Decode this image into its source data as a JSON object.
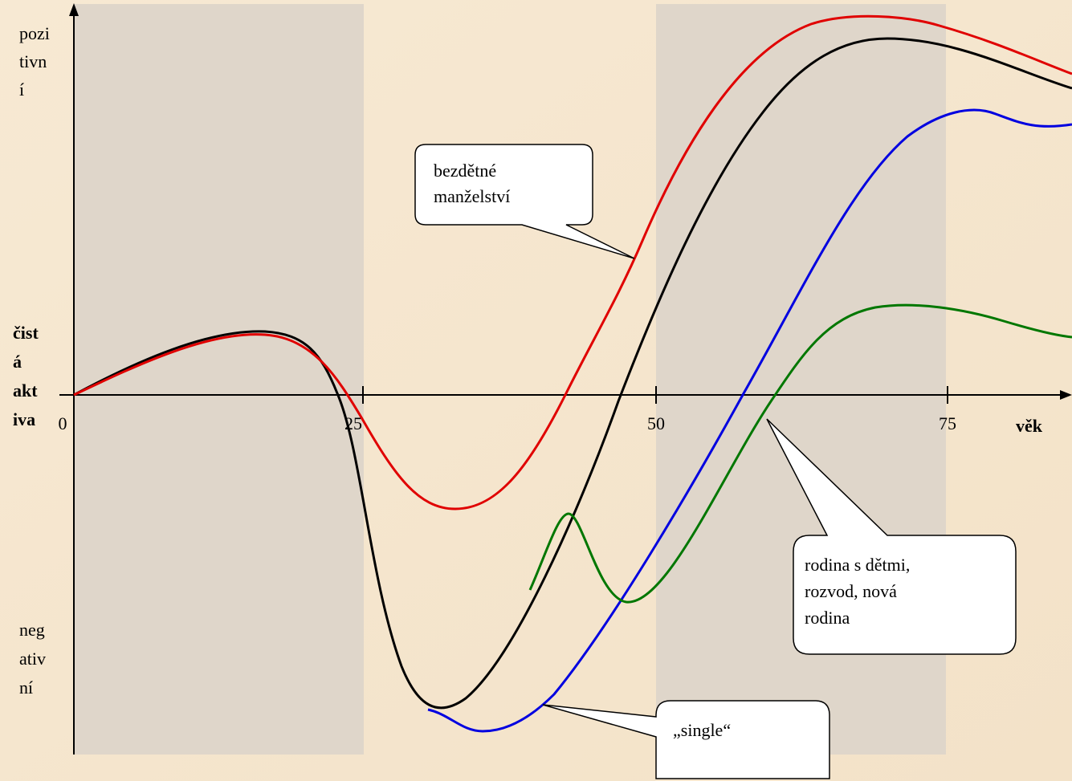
{
  "y_axis": {
    "top_label": [
      "pozi",
      "tivn",
      "í"
    ],
    "middle_label": [
      "čist",
      "á",
      "akt",
      "iva"
    ],
    "bottom_label": [
      "neg",
      "ativ",
      "ní"
    ]
  },
  "x_axis": {
    "ticks": [
      "0",
      "25",
      "50",
      "75"
    ],
    "label": "věk"
  },
  "callouts": [
    {
      "lines": [
        "bezdětné",
        "manželství"
      ]
    },
    {
      "lines": [
        "rodina s dětmi,",
        "rozvod, nová",
        "rodina"
      ]
    },
    {
      "lines": [
        "„single“"
      ]
    }
  ]
}
